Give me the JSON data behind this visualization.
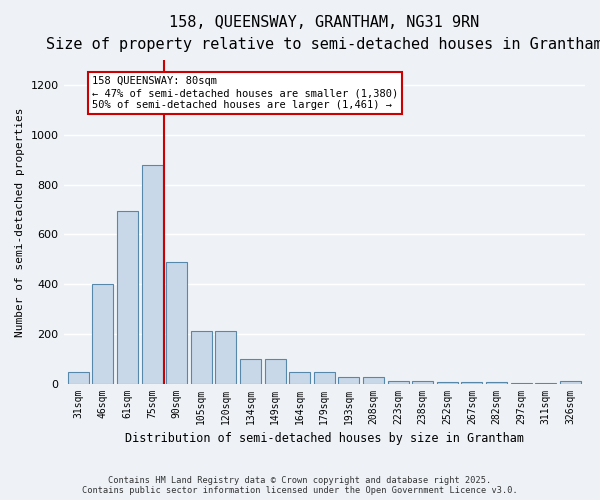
{
  "title_line1": "158, QUEENSWAY, GRANTHAM, NG31 9RN",
  "title_line2": "Size of property relative to semi-detached houses in Grantham",
  "xlabel": "Distribution of semi-detached houses by size in Grantham",
  "ylabel": "Number of semi-detached properties",
  "bar_labels": [
    "31sqm",
    "46sqm",
    "61sqm",
    "75sqm",
    "90sqm",
    "105sqm",
    "120sqm",
    "134sqm",
    "149sqm",
    "164sqm",
    "179sqm",
    "193sqm",
    "208sqm",
    "223sqm",
    "238sqm",
    "252sqm",
    "267sqm",
    "282sqm",
    "297sqm",
    "311sqm",
    "326sqm"
  ],
  "bar_values": [
    45,
    400,
    695,
    880,
    490,
    210,
    210,
    100,
    100,
    45,
    45,
    25,
    25,
    10,
    10,
    5,
    5,
    5,
    2,
    2,
    10
  ],
  "bar_color": "#c8d8e8",
  "bar_edge_color": "#5588aa",
  "vline_x_index": 3,
  "vline_color": "#cc0000",
  "annotation_text": "158 QUEENSWAY: 80sqm\n← 47% of semi-detached houses are smaller (1,380)\n50% of semi-detached houses are larger (1,461) →",
  "annotation_box_color": "#ffffff",
  "annotation_box_edge": "#cc0000",
  "ylim": [
    0,
    1300
  ],
  "yticks": [
    0,
    200,
    400,
    600,
    800,
    1000,
    1200
  ],
  "background_color": "#eef2f7",
  "grid_color": "#ffffff",
  "footer_line1": "Contains HM Land Registry data © Crown copyright and database right 2025.",
  "footer_line2": "Contains public sector information licensed under the Open Government Licence v3.0.",
  "title_fontsize": 11,
  "subtitle_fontsize": 9,
  "bar_width": 0.85,
  "fig_width": 6.0,
  "fig_height": 5.0,
  "fig_dpi": 100
}
